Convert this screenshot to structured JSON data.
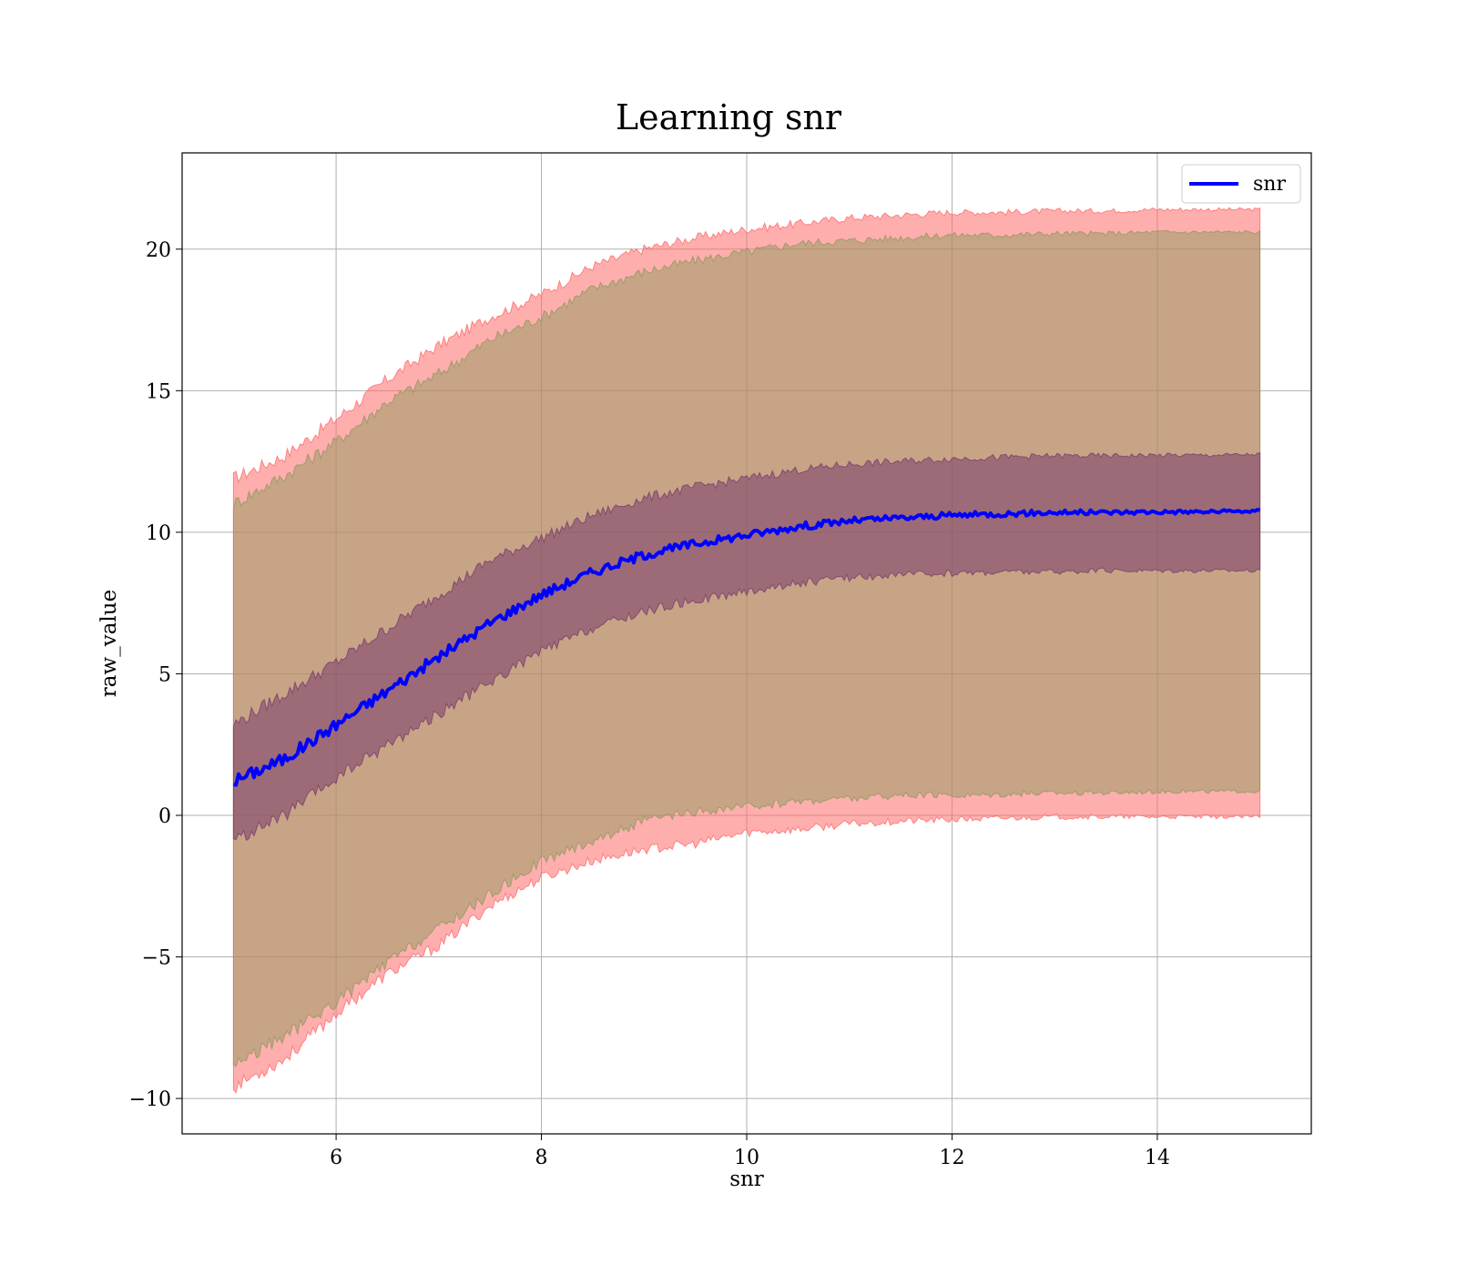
{
  "chart_data": {
    "type": "line",
    "title": "Learning snr",
    "xlabel": "snr",
    "ylabel": "raw_value",
    "xlim": [
      4.5,
      15.5
    ],
    "ylim": [
      -11.25,
      23.4
    ],
    "xticks": [
      6,
      8,
      10,
      12,
      14
    ],
    "yticks": [
      -10,
      -5,
      0,
      5,
      10,
      15,
      20
    ],
    "xtick_labels": [
      "6",
      "8",
      "10",
      "12",
      "14"
    ],
    "ytick_labels": [
      "−10",
      "−5",
      "0",
      "5",
      "10",
      "15",
      "20"
    ],
    "grid": true,
    "legend": {
      "position": "top-right",
      "entries": [
        "snr"
      ]
    },
    "x": [
      5,
      5.5,
      6,
      6.5,
      7,
      7.5,
      8,
      8.5,
      9,
      9.5,
      10,
      10.5,
      11,
      11.5,
      12,
      12.5,
      13,
      13.5,
      14,
      14.5,
      15
    ],
    "series": [
      {
        "name": "snr",
        "color": "#0000ff",
        "values": [
          1.2,
          2.0,
          3.2,
          4.4,
          5.6,
          6.8,
          7.8,
          8.6,
          9.2,
          9.6,
          9.9,
          10.2,
          10.4,
          10.5,
          10.6,
          10.65,
          10.7,
          10.7,
          10.72,
          10.72,
          10.75
        ]
      }
    ],
    "bands": [
      {
        "color": "#ff6b6b",
        "opacity": 0.55,
        "upper": [
          11.9,
          12.7,
          14.0,
          15.4,
          16.6,
          17.6,
          18.4,
          19.4,
          20.0,
          20.4,
          20.7,
          20.9,
          21.1,
          21.2,
          21.3,
          21.3,
          21.35,
          21.35,
          21.4,
          21.4,
          21.4
        ],
        "lower": [
          -9.6,
          -8.6,
          -7.0,
          -5.6,
          -4.6,
          -3.2,
          -2.2,
          -1.6,
          -1.2,
          -1.0,
          -0.6,
          -0.5,
          -0.3,
          -0.2,
          -0.15,
          -0.1,
          -0.05,
          -0.05,
          -0.05,
          -0.05,
          -0.05
        ]
      },
      {
        "color": "#8f9a5e",
        "opacity": 0.5,
        "upper": [
          11.0,
          12.0,
          13.2,
          14.6,
          15.6,
          16.8,
          17.6,
          18.6,
          19.2,
          19.6,
          19.9,
          20.2,
          20.3,
          20.4,
          20.5,
          20.5,
          20.55,
          20.55,
          20.6,
          20.6,
          20.6
        ],
        "lower": [
          -8.8,
          -7.8,
          -6.6,
          -5.2,
          -4.0,
          -2.8,
          -1.6,
          -0.9,
          -0.2,
          0.1,
          0.3,
          0.5,
          0.6,
          0.7,
          0.7,
          0.75,
          0.8,
          0.8,
          0.85,
          0.85,
          0.85
        ]
      },
      {
        "color": "#7a3c6c",
        "opacity": 0.55,
        "upper": [
          3.2,
          4.3,
          5.4,
          6.6,
          7.8,
          9.0,
          9.8,
          10.6,
          11.2,
          11.6,
          11.9,
          12.2,
          12.4,
          12.5,
          12.6,
          12.65,
          12.7,
          12.7,
          12.72,
          12.72,
          12.75
        ],
        "lower": [
          -0.9,
          0.0,
          1.3,
          2.5,
          3.6,
          4.7,
          5.8,
          6.6,
          7.2,
          7.6,
          7.9,
          8.2,
          8.4,
          8.5,
          8.55,
          8.6,
          8.6,
          8.65,
          8.65,
          8.65,
          8.65
        ]
      }
    ]
  }
}
